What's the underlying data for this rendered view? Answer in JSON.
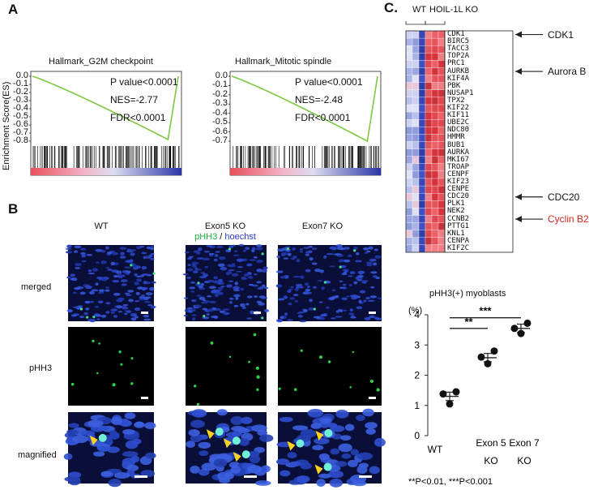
{
  "panels": {
    "a": {
      "letter": "A",
      "y_axis_label": "Enrichment Score(ES)",
      "plots": [
        {
          "title": "Hallmark_G2M checkpoint",
          "p_value": "P value<0.0001",
          "nes": "NES=-2.77",
          "fdr": "FDR<0.0001",
          "y_ticks": [
            "0.0",
            "-0.1",
            "-0.2",
            "-0.3",
            "-0.4",
            "-0.5",
            "-0.6",
            "-0.7",
            "-0.8"
          ],
          "curve_min": -0.78
        },
        {
          "title": "Hallmark_Mitotic spindle",
          "p_value": "P value<0.0001",
          "nes": "NES=-2.48",
          "fdr": "FDR<0.0001",
          "y_ticks": [
            "0.0",
            "-0.1",
            "-0.2",
            "-0.3",
            "-0.4",
            "-0.5",
            "-0.6",
            "-0.7"
          ],
          "curve_min": -0.7
        }
      ],
      "colors": {
        "curve": "#7ac943",
        "pos": "#e8505b",
        "neg": "#2a36a8"
      }
    },
    "b": {
      "letter": "B",
      "columns": [
        "WT",
        "Exon5 KO",
        "Exon7 KO"
      ],
      "legend_green": "pHH3",
      "legend_sep": " / ",
      "legend_blue": "hoechst",
      "rows": [
        "merged",
        "pHH3",
        "magnified"
      ]
    },
    "c": {
      "letter": "C.",
      "group_wt": "WT",
      "group_ko": "HOIL-1L KO",
      "genes": [
        "CDK1",
        "BIRC5",
        "TACC3",
        "TOP2A",
        "PRC1",
        "AURKB",
        "KIF4A",
        "PBK",
        "NUSAP1",
        "TPX2",
        "KIF22",
        "KIF11",
        "UBE2C",
        "NDC80",
        "HMMR",
        "BUB1",
        "AURKA",
        "MKI67",
        "TROAP",
        "CENPF",
        "KIF23",
        "CENPE",
        "CDC20",
        "PLK1",
        "NEK2",
        "CCNB2",
        "PTTG1",
        "KNL1",
        "CENPA",
        "KIF2C"
      ],
      "callouts": [
        {
          "label": "CDK1",
          "gene_index": 0,
          "color": "#111111"
        },
        {
          "label": "Aurora B",
          "gene_index": 5,
          "color": "#111111"
        },
        {
          "label": "CDC20",
          "gene_index": 22,
          "color": "#111111"
        },
        {
          "label": "Cyclin B2",
          "gene_index": 25,
          "color": "#d42a1a"
        }
      ]
    },
    "d": {
      "title": "pHH3(+) myoblasts",
      "unit": "(%)",
      "chart_data": {
        "type": "scatter",
        "title": "pHH3(+) myoblasts",
        "ylabel": "(%)",
        "ylim": [
          0,
          4
        ],
        "y_ticks": [
          "0",
          "1",
          "2",
          "3",
          "4"
        ],
        "categories": [
          "WT",
          "Exon 5 KO",
          "Exon 7 KO"
        ],
        "category_lines": [
          [
            "WT",
            ""
          ],
          [
            "Exon 5",
            "KO"
          ],
          [
            "Exon 7",
            "KO"
          ]
        ],
        "points": [
          [
            1.45,
            1.38,
            1.05
          ],
          [
            2.8,
            2.6,
            2.38
          ],
          [
            3.72,
            3.55,
            3.38
          ]
        ],
        "means": [
          1.3,
          2.58,
          3.55
        ],
        "significance": [
          {
            "from": 0,
            "to": 1,
            "label": "**"
          },
          {
            "from": 0,
            "to": 2,
            "label": "***"
          }
        ]
      },
      "footnote": "**P<0.01, ***P<0.001"
    }
  }
}
